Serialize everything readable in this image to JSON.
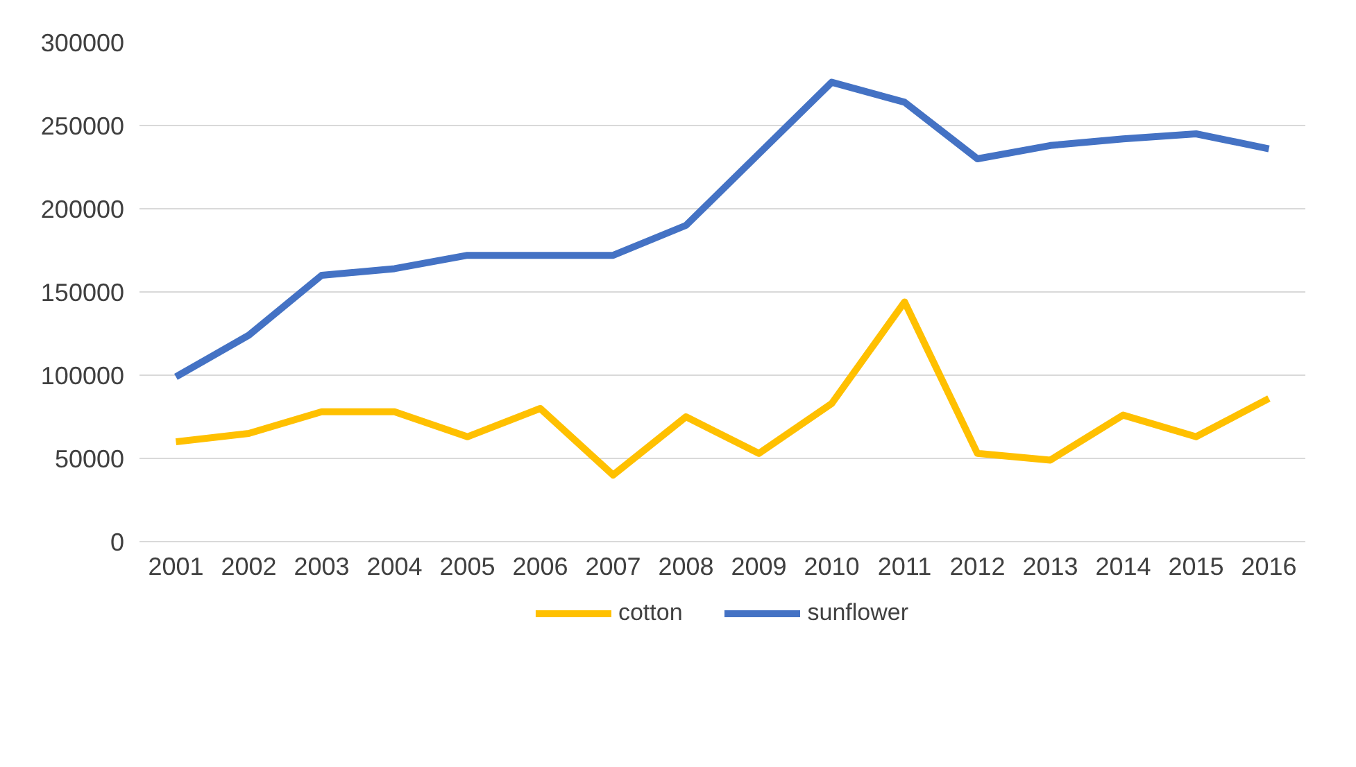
{
  "chart_data": {
    "type": "line",
    "categories": [
      "2001",
      "2002",
      "2003",
      "2004",
      "2005",
      "2006",
      "2007",
      "2008",
      "2009",
      "2010",
      "2011",
      "2012",
      "2013",
      "2014",
      "2015",
      "2016"
    ],
    "series": [
      {
        "name": "cotton",
        "color": "#ffc000",
        "values": [
          60000,
          65000,
          78000,
          78000,
          63000,
          80000,
          40000,
          75000,
          53000,
          83000,
          144000,
          53000,
          49000,
          76000,
          63000,
          86000
        ]
      },
      {
        "name": "sunflower",
        "color": "#4472c4",
        "values": [
          99000,
          124000,
          160000,
          164000,
          172000,
          172000,
          172000,
          190000,
          233000,
          276000,
          264000,
          230000,
          238000,
          242000,
          245000,
          236000
        ]
      }
    ],
    "ylim": [
      0,
      300000
    ],
    "yticks": [
      0,
      50000,
      100000,
      150000,
      200000,
      250000,
      300000
    ],
    "grid": "y",
    "legend": "bottom",
    "marker": "none",
    "line_style": "solid"
  }
}
